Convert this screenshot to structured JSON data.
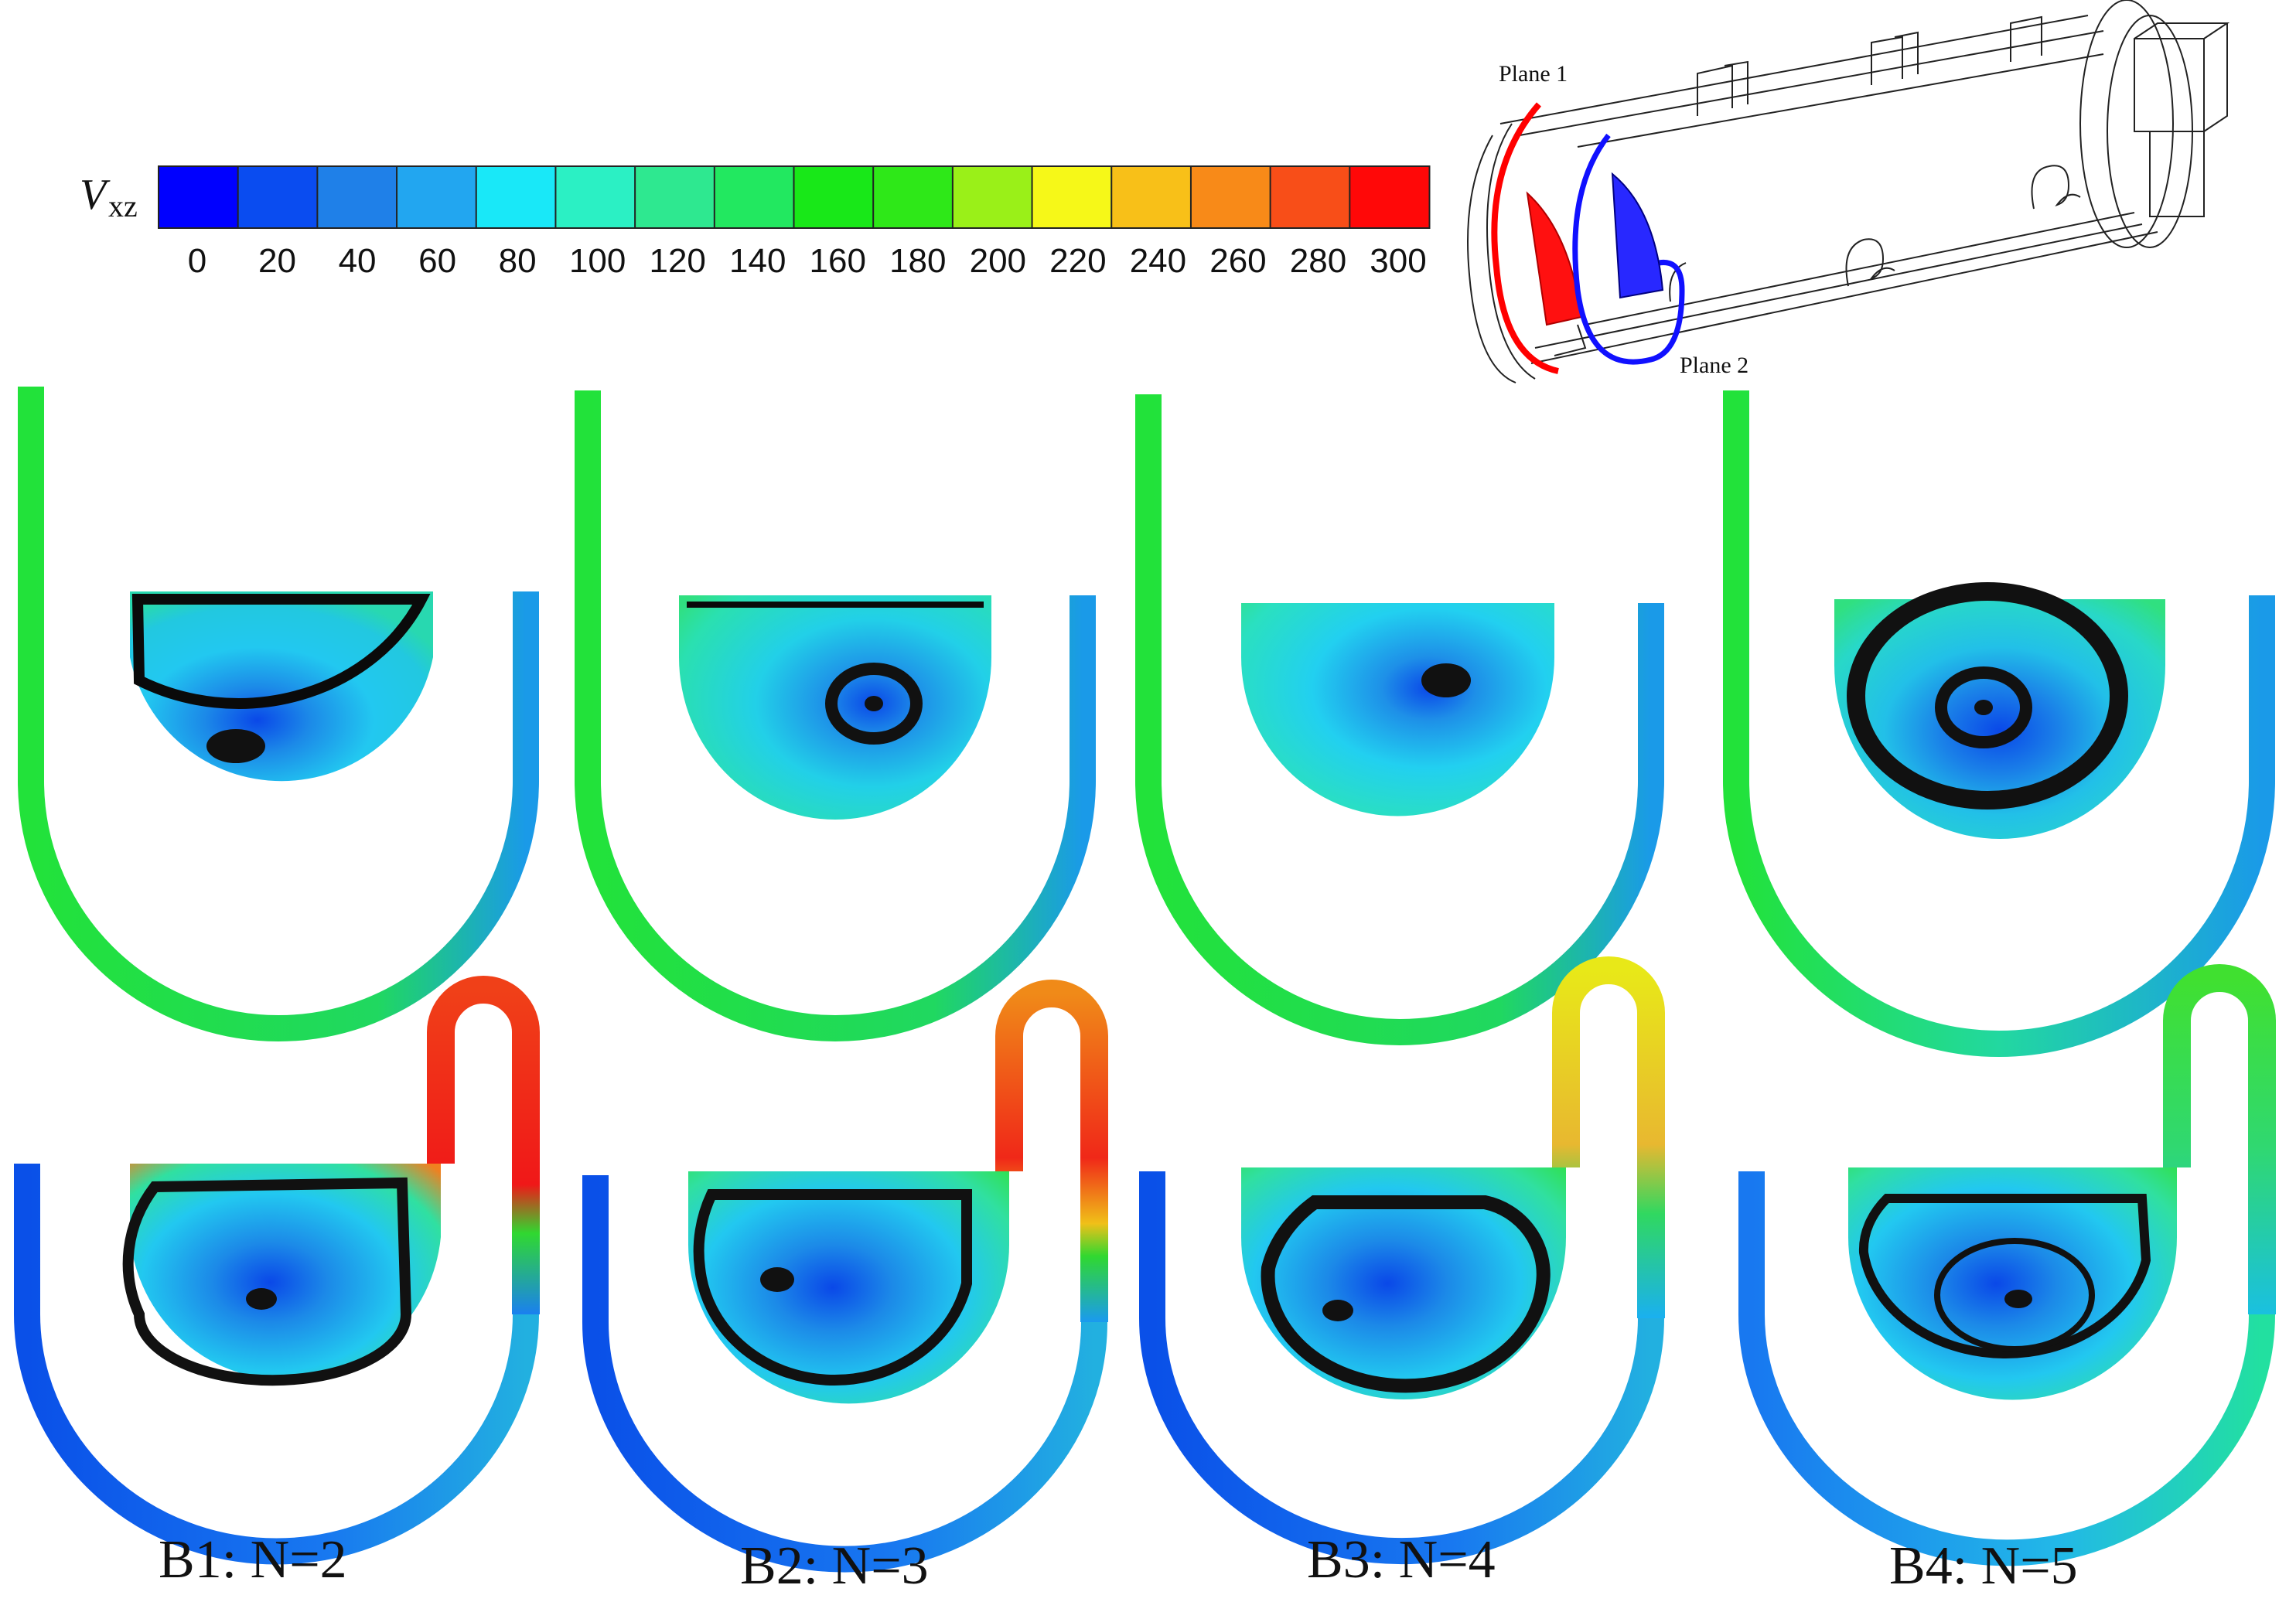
{
  "colorbar": {
    "variable": "V",
    "subscript": "xz",
    "ticks": [
      "0",
      "20",
      "40",
      "60",
      "80",
      "100",
      "120",
      "140",
      "160",
      "180",
      "200",
      "220",
      "240",
      "260",
      "280",
      "300"
    ],
    "colors": [
      "#0000ff",
      "#0a4cf0",
      "#1f80e8",
      "#22a6f0",
      "#19e8f8",
      "#2bf0c4",
      "#2ee890",
      "#22e860",
      "#18e818",
      "#2ee818",
      "#9af018",
      "#f6f818",
      "#f8c018",
      "#f88a18",
      "#f84e18",
      "#ff0808"
    ]
  },
  "schematic": {
    "plane1_label": "Plane 1",
    "plane2_label": "Plane 2",
    "plane1_color": "#ff0000",
    "plane2_color": "#0000ff"
  },
  "cases": [
    {
      "label": "B1: N=2"
    },
    {
      "label": "B2: N=3"
    },
    {
      "label": "B3: N=4"
    },
    {
      "label": "B4: N=5"
    }
  ]
}
